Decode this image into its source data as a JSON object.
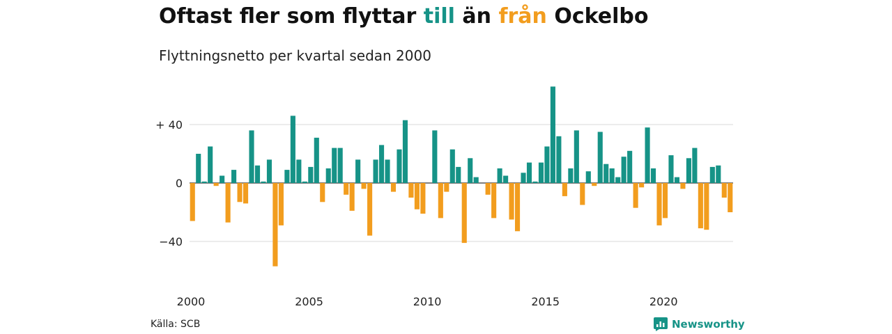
{
  "header": {
    "title_part1": "Oftast fler som flyttar ",
    "title_in": "till",
    "title_part2": " än ",
    "title_out": "från",
    "title_part3": " Ockelbo",
    "subtitle": "Flyttningsnetto per kvartal sedan 2000"
  },
  "footer": {
    "source": "Källa: SCB",
    "brand": "Newsworthy",
    "brand_icon": "newsworthy-logo-icon"
  },
  "colors": {
    "positive": "#169387",
    "negative": "#f29d1e",
    "grid": "#d9d9d9",
    "axis": "#333333"
  },
  "chart_data": {
    "type": "bar",
    "title": "Oftast fler som flyttar till än från Ockelbo",
    "subtitle": "Flyttningsnetto per kvartal sedan 2000",
    "xlabel": "",
    "ylabel": "",
    "x_start": "2000 Q1",
    "x_ticks": [
      "2000",
      "2005",
      "2010",
      "2015",
      "2020"
    ],
    "y_ticks": [
      {
        "value": 40,
        "label": "+ 40"
      },
      {
        "value": 0,
        "label": "0"
      },
      {
        "value": -40,
        "label": "−40"
      }
    ],
    "ylim": [
      -57,
      67
    ],
    "grid": true,
    "values": [
      -26,
      20,
      1,
      25,
      -2,
      5,
      -27,
      9,
      -13,
      -14,
      36,
      12,
      1,
      16,
      -57,
      -29,
      9,
      46,
      16,
      1,
      11,
      31,
      -13,
      10,
      24,
      24,
      -8,
      -19,
      16,
      -4,
      -36,
      16,
      26,
      16,
      -6,
      23,
      43,
      -10,
      -18,
      -21,
      0,
      36,
      -24,
      -6,
      23,
      11,
      -41,
      17,
      4,
      0,
      -8,
      -24,
      10,
      5,
      -25,
      -33,
      7,
      14,
      1,
      14,
      25,
      66,
      32,
      -9,
      10,
      36,
      -15,
      8,
      -2,
      35,
      13,
      10,
      4,
      18,
      22,
      -17,
      -3,
      38,
      10,
      -29,
      -24,
      19,
      4,
      -4,
      17,
      24,
      -31,
      -32,
      11,
      12,
      -10,
      -20
    ]
  }
}
